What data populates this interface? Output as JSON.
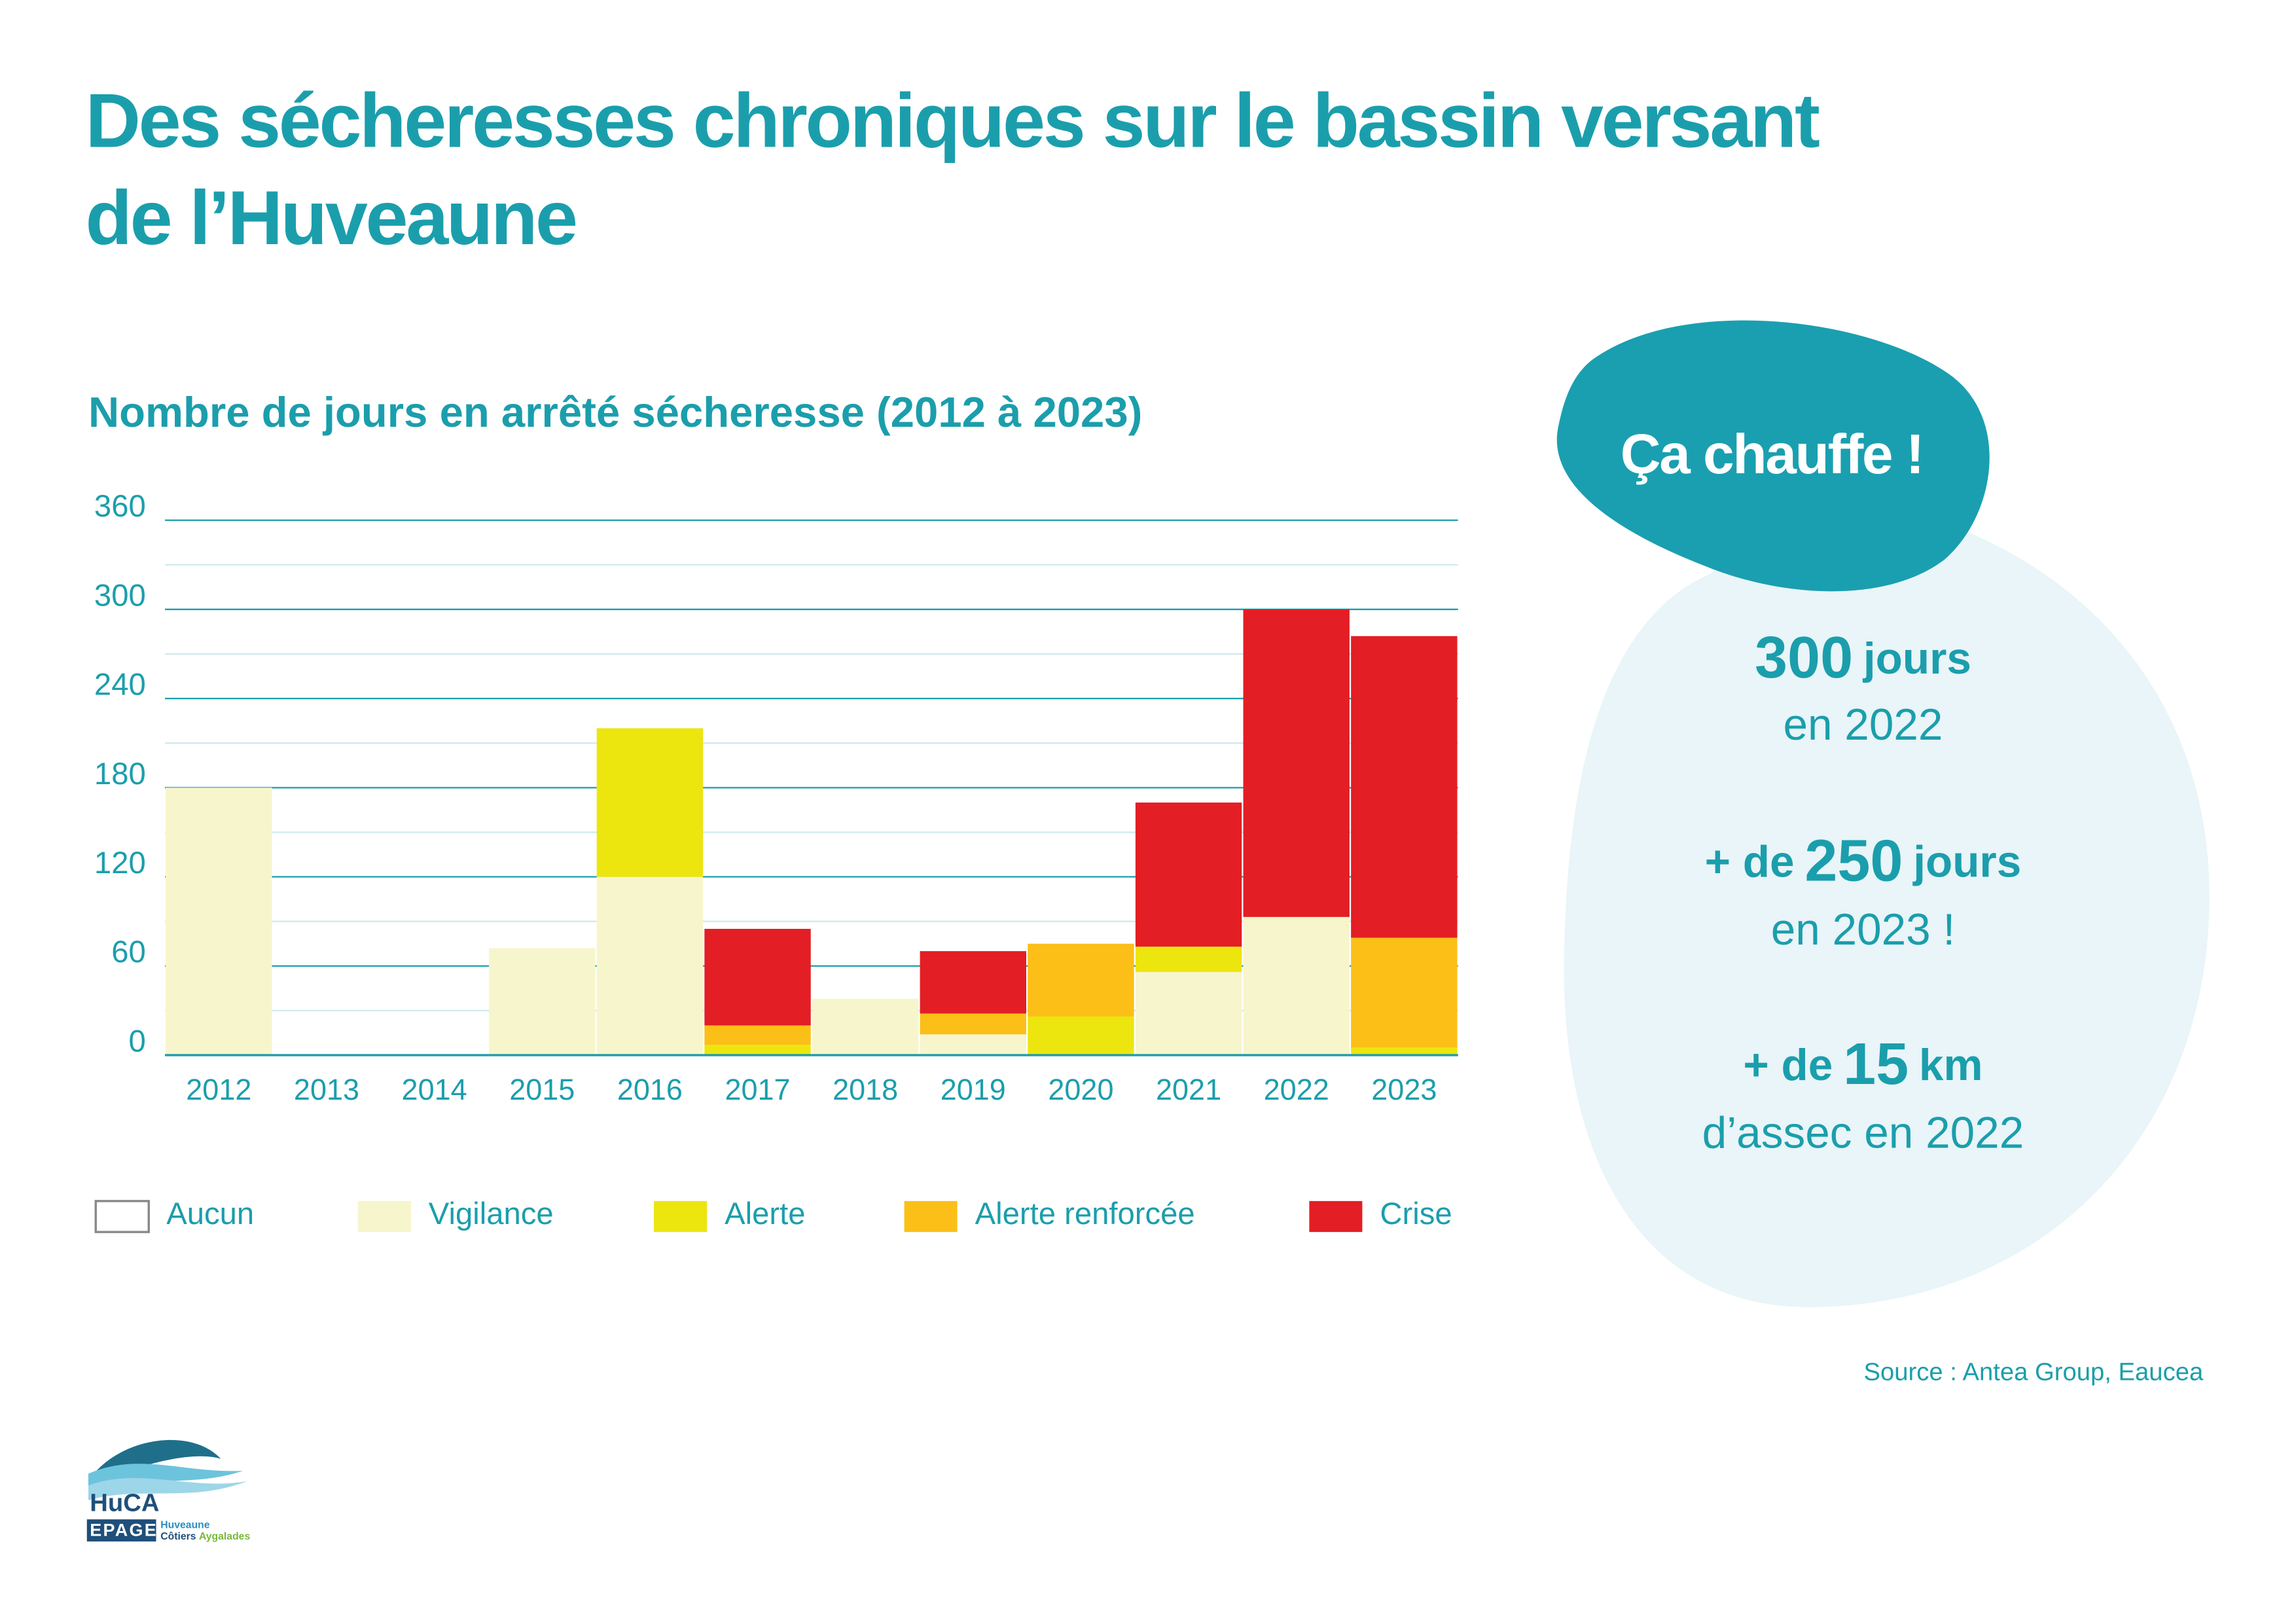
{
  "title": [
    "Des sécheresses chroniques sur le bassin versant",
    "de l’Huveaune"
  ],
  "chart_data": {
    "type": "stacked_bar",
    "title": "Nombre de jours en arrêté sécheresse (2012 à 2023)",
    "categories": [
      "2012",
      "2013",
      "2014",
      "2015",
      "2016",
      "2017",
      "2018",
      "2019",
      "2020",
      "2021",
      "2022",
      "2023"
    ],
    "series": [
      {
        "name": "Vigilance",
        "color": "#f7f5cc",
        "values": [
          180,
          0,
          0,
          72,
          120,
          0,
          38,
          14,
          0,
          56,
          93,
          0
        ]
      },
      {
        "name": "Alerte",
        "color": "#ede50e",
        "values": [
          0,
          0,
          0,
          0,
          100,
          7,
          0,
          0,
          26,
          17,
          0,
          5
        ]
      },
      {
        "name": "Alerte renforcée",
        "color": "#fbbf17",
        "values": [
          0,
          0,
          0,
          0,
          0,
          13,
          0,
          14,
          49,
          0,
          0,
          74
        ]
      },
      {
        "name": "Crise",
        "color": "#e31e24",
        "values": [
          0,
          0,
          0,
          0,
          0,
          65,
          0,
          42,
          0,
          97,
          207,
          203
        ]
      }
    ],
    "legend_extra": [
      {
        "name": "Aucun",
        "color": "#ffffff"
      }
    ],
    "ylim": [
      0,
      360
    ],
    "yticks": [
      0,
      60,
      120,
      180,
      240,
      300,
      360
    ],
    "minor_yticks": [
      30,
      90,
      150,
      210,
      270,
      330
    ],
    "grid": true
  },
  "callout": {
    "heading": "Ça chauffe !",
    "stats": [
      {
        "prefix": "",
        "number": 300,
        "unit": "jours",
        "line2": "en 2022"
      },
      {
        "prefix": "+ de",
        "number": 250,
        "unit": "jours",
        "line2": "en 2023 !"
      },
      {
        "prefix": "+ de",
        "number": 15,
        "unit": "km",
        "line2": "d’assec en 2022"
      }
    ]
  },
  "source": "Source :  Antea Group, Eaucea",
  "logo": {
    "name": "HuCA",
    "sub": "EPAGE",
    "line1": "Huveaune",
    "line2a": "Côtiers",
    "line2b": "Aygalades"
  }
}
